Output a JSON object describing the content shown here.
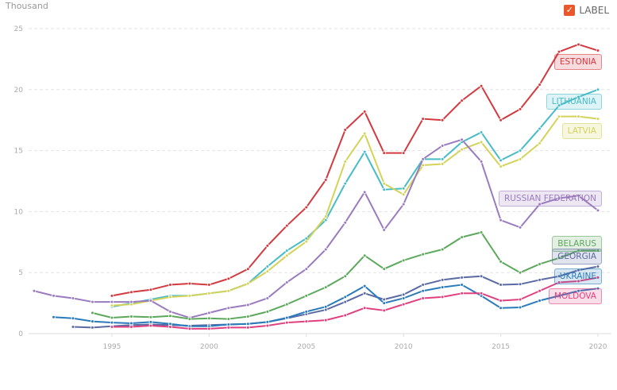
{
  "legend": {
    "label_toggle": "LABEL",
    "checked": true,
    "accent": "#e8582a"
  },
  "chart_data": {
    "type": "line",
    "ylabel": "Thousand",
    "ylim": [
      0,
      25
    ],
    "yticks": [
      0,
      5,
      10,
      15,
      20,
      25
    ],
    "xlim": [
      1991,
      2020
    ],
    "xticks": [
      1995,
      2000,
      2005,
      2010,
      2015,
      2020
    ],
    "grid": true,
    "series": [
      {
        "name": "ESTONIA",
        "color": "#d23a40",
        "start": 1995,
        "values": [
          3.1,
          3.4,
          3.6,
          4.0,
          4.1,
          4.0,
          4.5,
          5.3,
          7.2,
          8.85,
          10.35,
          12.6,
          16.7,
          18.2,
          14.8,
          14.8,
          17.6,
          17.5,
          19.1,
          20.3,
          17.5,
          18.4,
          20.4,
          23.1,
          23.7,
          23.2
        ]
      },
      {
        "name": "LITHUANIA",
        "color": "#47bcc8",
        "start": 1995,
        "values": [
          2.2,
          2.5,
          2.8,
          3.1,
          3.1,
          3.3,
          3.5,
          4.1,
          5.5,
          6.8,
          7.8,
          9.3,
          12.3,
          14.9,
          11.8,
          11.9,
          14.3,
          14.3,
          15.7,
          16.5,
          14.2,
          15.0,
          16.8,
          18.7,
          19.4,
          20.0
        ]
      },
      {
        "name": "LATVIA",
        "color": "#d3d35a",
        "start": 1995,
        "values": [
          2.3,
          2.4,
          2.7,
          3.0,
          3.1,
          3.3,
          3.5,
          4.1,
          5.1,
          6.4,
          7.55,
          9.6,
          14.1,
          16.4,
          12.3,
          11.4,
          13.8,
          13.9,
          15.1,
          15.7,
          13.7,
          14.3,
          15.6,
          17.8,
          17.8,
          17.6
        ]
      },
      {
        "name": "RUSSIAN FEDERATION",
        "color": "#9b7bbf",
        "start": 1991,
        "values": [
          3.5,
          3.1,
          2.9,
          2.6,
          2.6,
          2.6,
          2.7,
          1.8,
          1.3,
          1.7,
          2.1,
          2.35,
          2.9,
          4.2,
          5.3,
          6.9,
          9.1,
          11.6,
          8.5,
          10.6,
          14.3,
          15.4,
          15.9,
          14.1,
          9.3,
          8.7,
          10.6,
          11.1,
          11.3,
          10.1
        ]
      },
      {
        "name": "BELARUS",
        "color": "#5ca85c",
        "start": 1994,
        "values": [
          1.7,
          1.3,
          1.4,
          1.35,
          1.45,
          1.2,
          1.25,
          1.2,
          1.4,
          1.8,
          2.4,
          3.1,
          3.8,
          4.7,
          6.4,
          5.3,
          6.0,
          6.5,
          6.9,
          7.9,
          8.3,
          5.9,
          5.0,
          5.7,
          6.2,
          6.8,
          6.8
        ]
      },
      {
        "name": "GEORGIA",
        "color": "#5a6aa2",
        "start": 1993,
        "values": [
          0.55,
          0.5,
          0.6,
          0.7,
          0.75,
          0.7,
          0.65,
          0.7,
          0.75,
          0.8,
          0.95,
          1.25,
          1.6,
          1.95,
          2.6,
          3.3,
          2.8,
          3.2,
          4.0,
          4.4,
          4.6,
          4.7,
          4.0,
          4.05,
          4.4,
          4.7,
          5.2,
          5.5
        ]
      },
      {
        "name": "UKRAINE",
        "color": "#2a7bbb",
        "start": 1992,
        "values": [
          1.35,
          1.25,
          1.0,
          0.9,
          0.85,
          0.95,
          0.8,
          0.6,
          0.6,
          0.75,
          0.8,
          0.95,
          1.3,
          1.8,
          2.2,
          3.0,
          3.9,
          2.5,
          2.9,
          3.5,
          3.8,
          4.0,
          3.1,
          2.1,
          2.15,
          2.7,
          3.1,
          3.5,
          3.7
        ]
      },
      {
        "name": "MOLDOVA",
        "color": "#e0407f",
        "start": 1995,
        "values": [
          0.55,
          0.55,
          0.65,
          0.55,
          0.4,
          0.4,
          0.5,
          0.5,
          0.65,
          0.9,
          1.0,
          1.1,
          1.5,
          2.1,
          1.9,
          2.4,
          2.9,
          3.0,
          3.3,
          3.3,
          2.7,
          2.8,
          3.5,
          4.2,
          4.3,
          4.6
        ]
      }
    ]
  }
}
